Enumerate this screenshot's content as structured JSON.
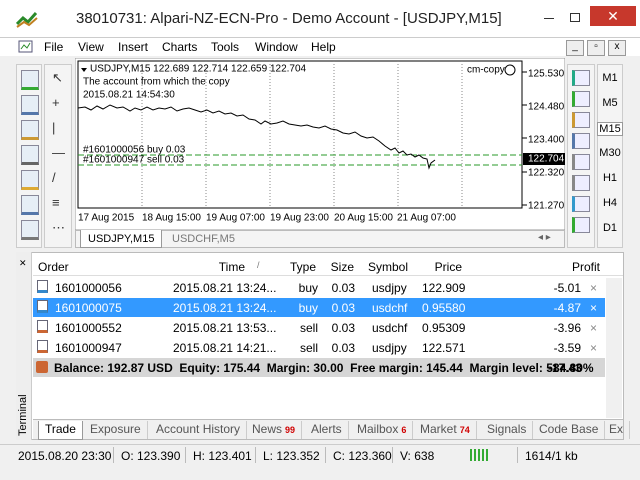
{
  "window": {
    "title": "38010731: Alpari-NZ-ECN-Pro - Demo Account - [USDJPY,M15]"
  },
  "menu": [
    "File",
    "View",
    "Insert",
    "Charts",
    "Tools",
    "Window",
    "Help"
  ],
  "chart": {
    "header": "USDJPY,M15  122.689 122.714 122.659 122.704",
    "comment": [
      "The account from which the copy",
      "2015.08.21 14:54:30"
    ],
    "expert": "cm-copy",
    "price_labels": [
      "125.530",
      "124.480",
      "123.400",
      "122.704",
      "122.320",
      "121.270"
    ],
    "time_labels": [
      "17 Aug 2015",
      "18 Aug 15:00",
      "19 Aug 07:00",
      "19 Aug 23:00",
      "20 Aug 15:00",
      "21 Aug 07:00"
    ],
    "order_lines": [
      "#1601000056 buy 0.03",
      "#1601000947 sell 0.03"
    ],
    "tabs": [
      "USDJPY,M15",
      "USDCHF,M5"
    ]
  },
  "timeframes": [
    "M1",
    "M5",
    "M15",
    "M30",
    "H1",
    "H4",
    "D1"
  ],
  "terminal": {
    "label": "Terminal",
    "columns": [
      "Order",
      "Time",
      "Type",
      "Size",
      "Symbol",
      "Price",
      "Profit"
    ],
    "rows": [
      [
        "1601000056",
        "2015.08.21 13:24...",
        "buy",
        "0.03",
        "usdjpy",
        "122.909",
        "-5.01"
      ],
      [
        "1601000075",
        "2015.08.21 13:24...",
        "buy",
        "0.03",
        "usdchf",
        "0.95580",
        "-4.87"
      ],
      [
        "1601000552",
        "2015.08.21 13:53...",
        "sell",
        "0.03",
        "usdchf",
        "0.95309",
        "-3.96"
      ],
      [
        "1601000947",
        "2015.08.21 14:21...",
        "sell",
        "0.03",
        "usdjpy",
        "122.571",
        "-3.59"
      ]
    ],
    "summary": "Balance: 192.87 USD  Equity: 175.44  Margin: 30.00  Free margin: 145.44  Margin level: 584.80%",
    "summary_profit": "-17.43",
    "tabs": [
      {
        "label": "Trade"
      },
      {
        "label": "Exposure"
      },
      {
        "label": "Account History"
      },
      {
        "label": "News",
        "badge": "99"
      },
      {
        "label": "Alerts"
      },
      {
        "label": "Mailbox",
        "badge": "6"
      },
      {
        "label": "Market",
        "badge": "74"
      },
      {
        "label": "Signals"
      },
      {
        "label": "Code Base"
      },
      {
        "label": "Ex"
      }
    ]
  },
  "status": [
    "2015.08.20 23:30",
    "O: 123.390",
    "H: 123.401",
    "L: 123.352",
    "C: 123.360",
    "V: 638",
    "1614/1 kb"
  ]
}
